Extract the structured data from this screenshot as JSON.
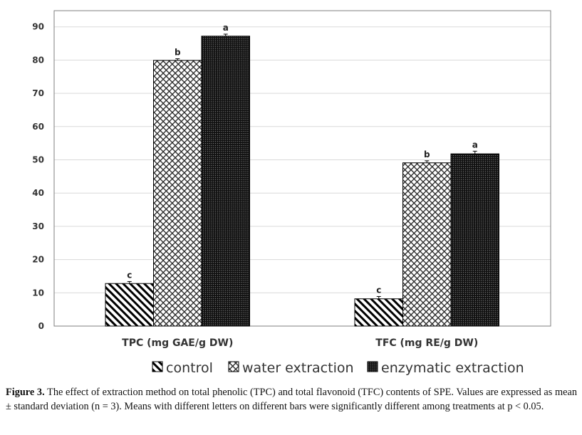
{
  "chart_data": {
    "type": "bar",
    "categories": [
      "TPC (mg GAE/g DW)",
      "TFC (mg RE/g DW)"
    ],
    "series": [
      {
        "name": "control",
        "values": [
          12.8,
          8.2
        ],
        "errors": [
          0.6,
          0.7
        ],
        "labels": [
          "c",
          "c"
        ],
        "pattern": "diagonal-stripes"
      },
      {
        "name": "water extraction",
        "values": [
          79.9,
          49.1
        ],
        "errors": [
          0.5,
          0.6
        ],
        "labels": [
          "b",
          "b"
        ],
        "pattern": "crosshatch"
      },
      {
        "name": "enzymatic extraction",
        "values": [
          87.2,
          51.8
        ],
        "errors": [
          0.6,
          0.8
        ],
        "labels": [
          "a",
          "a"
        ],
        "pattern": "dense-dark-weave"
      }
    ],
    "ylim": [
      0,
      95
    ],
    "yticks": [
      0,
      10,
      20,
      30,
      40,
      50,
      60,
      70,
      80,
      90
    ],
    "grid": true,
    "legend_position": "bottom",
    "colors": {
      "gridline": "#d9d9d9",
      "frame": "#7f7f7f",
      "bar_edge": "#000000"
    }
  },
  "caption": {
    "label": "Figure 3.",
    "text": "The effect of extraction method on total phenolic (TPC) and total flavonoid (TFC) contents of SPE. Values are expressed as mean ± standard deviation (n = 3). Means with different letters on different bars were significantly different among treatments at p < 0.05."
  }
}
